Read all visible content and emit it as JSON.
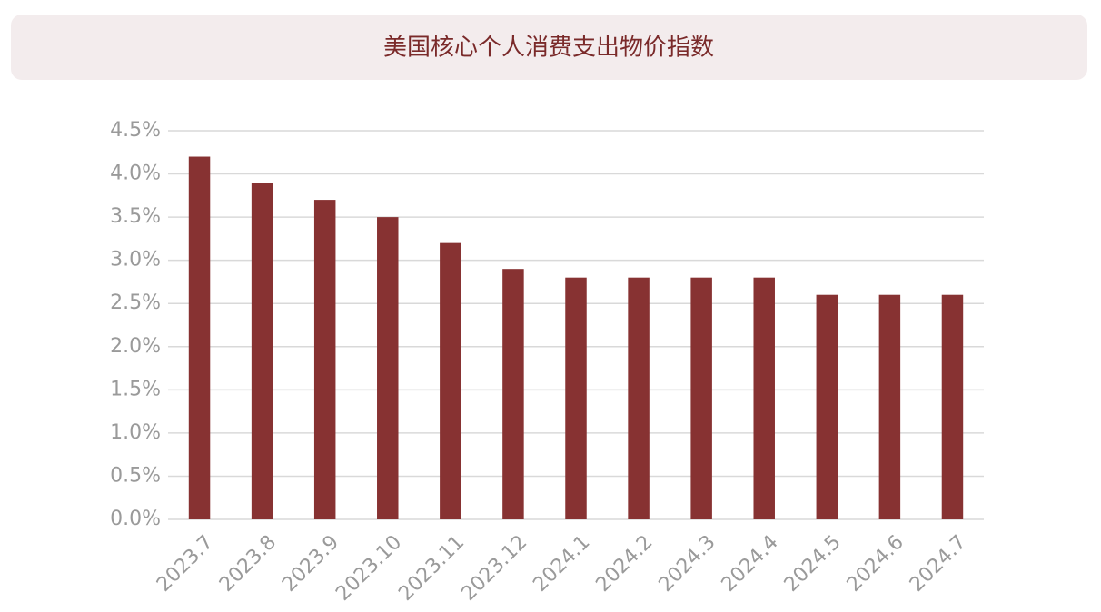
{
  "chart_data": {
    "type": "bar",
    "title": "美国核心个人消费支出物价指数",
    "categories": [
      "2023.7",
      "2023.8",
      "2023.9",
      "2023.10",
      "2023.11",
      "2023.12",
      "2024.1",
      "2024.2",
      "2024.3",
      "2024.4",
      "2024.5",
      "2024.6",
      "2024.7"
    ],
    "values": [
      4.2,
      3.9,
      3.7,
      3.5,
      3.2,
      2.9,
      2.8,
      2.8,
      2.8,
      2.8,
      2.6,
      2.6,
      2.6
    ],
    "color": "#873232",
    "ylim": [
      0,
      4.5
    ],
    "yticks": [
      {
        "value": 0,
        "label": "0.0%"
      },
      {
        "value": 0.5,
        "label": "0.5%"
      },
      {
        "value": 1,
        "label": "1.0%"
      },
      {
        "value": 1.5,
        "label": "1.5%"
      },
      {
        "value": 2,
        "label": "2.0%"
      },
      {
        "value": 2.5,
        "label": "2.5%"
      },
      {
        "value": 3,
        "label": "3.0%"
      },
      {
        "value": 3.5,
        "label": "3.5%"
      },
      {
        "value": 4,
        "label": "4.0%"
      },
      {
        "value": 4.5,
        "label": "4.5%"
      }
    ],
    "grid": true
  }
}
